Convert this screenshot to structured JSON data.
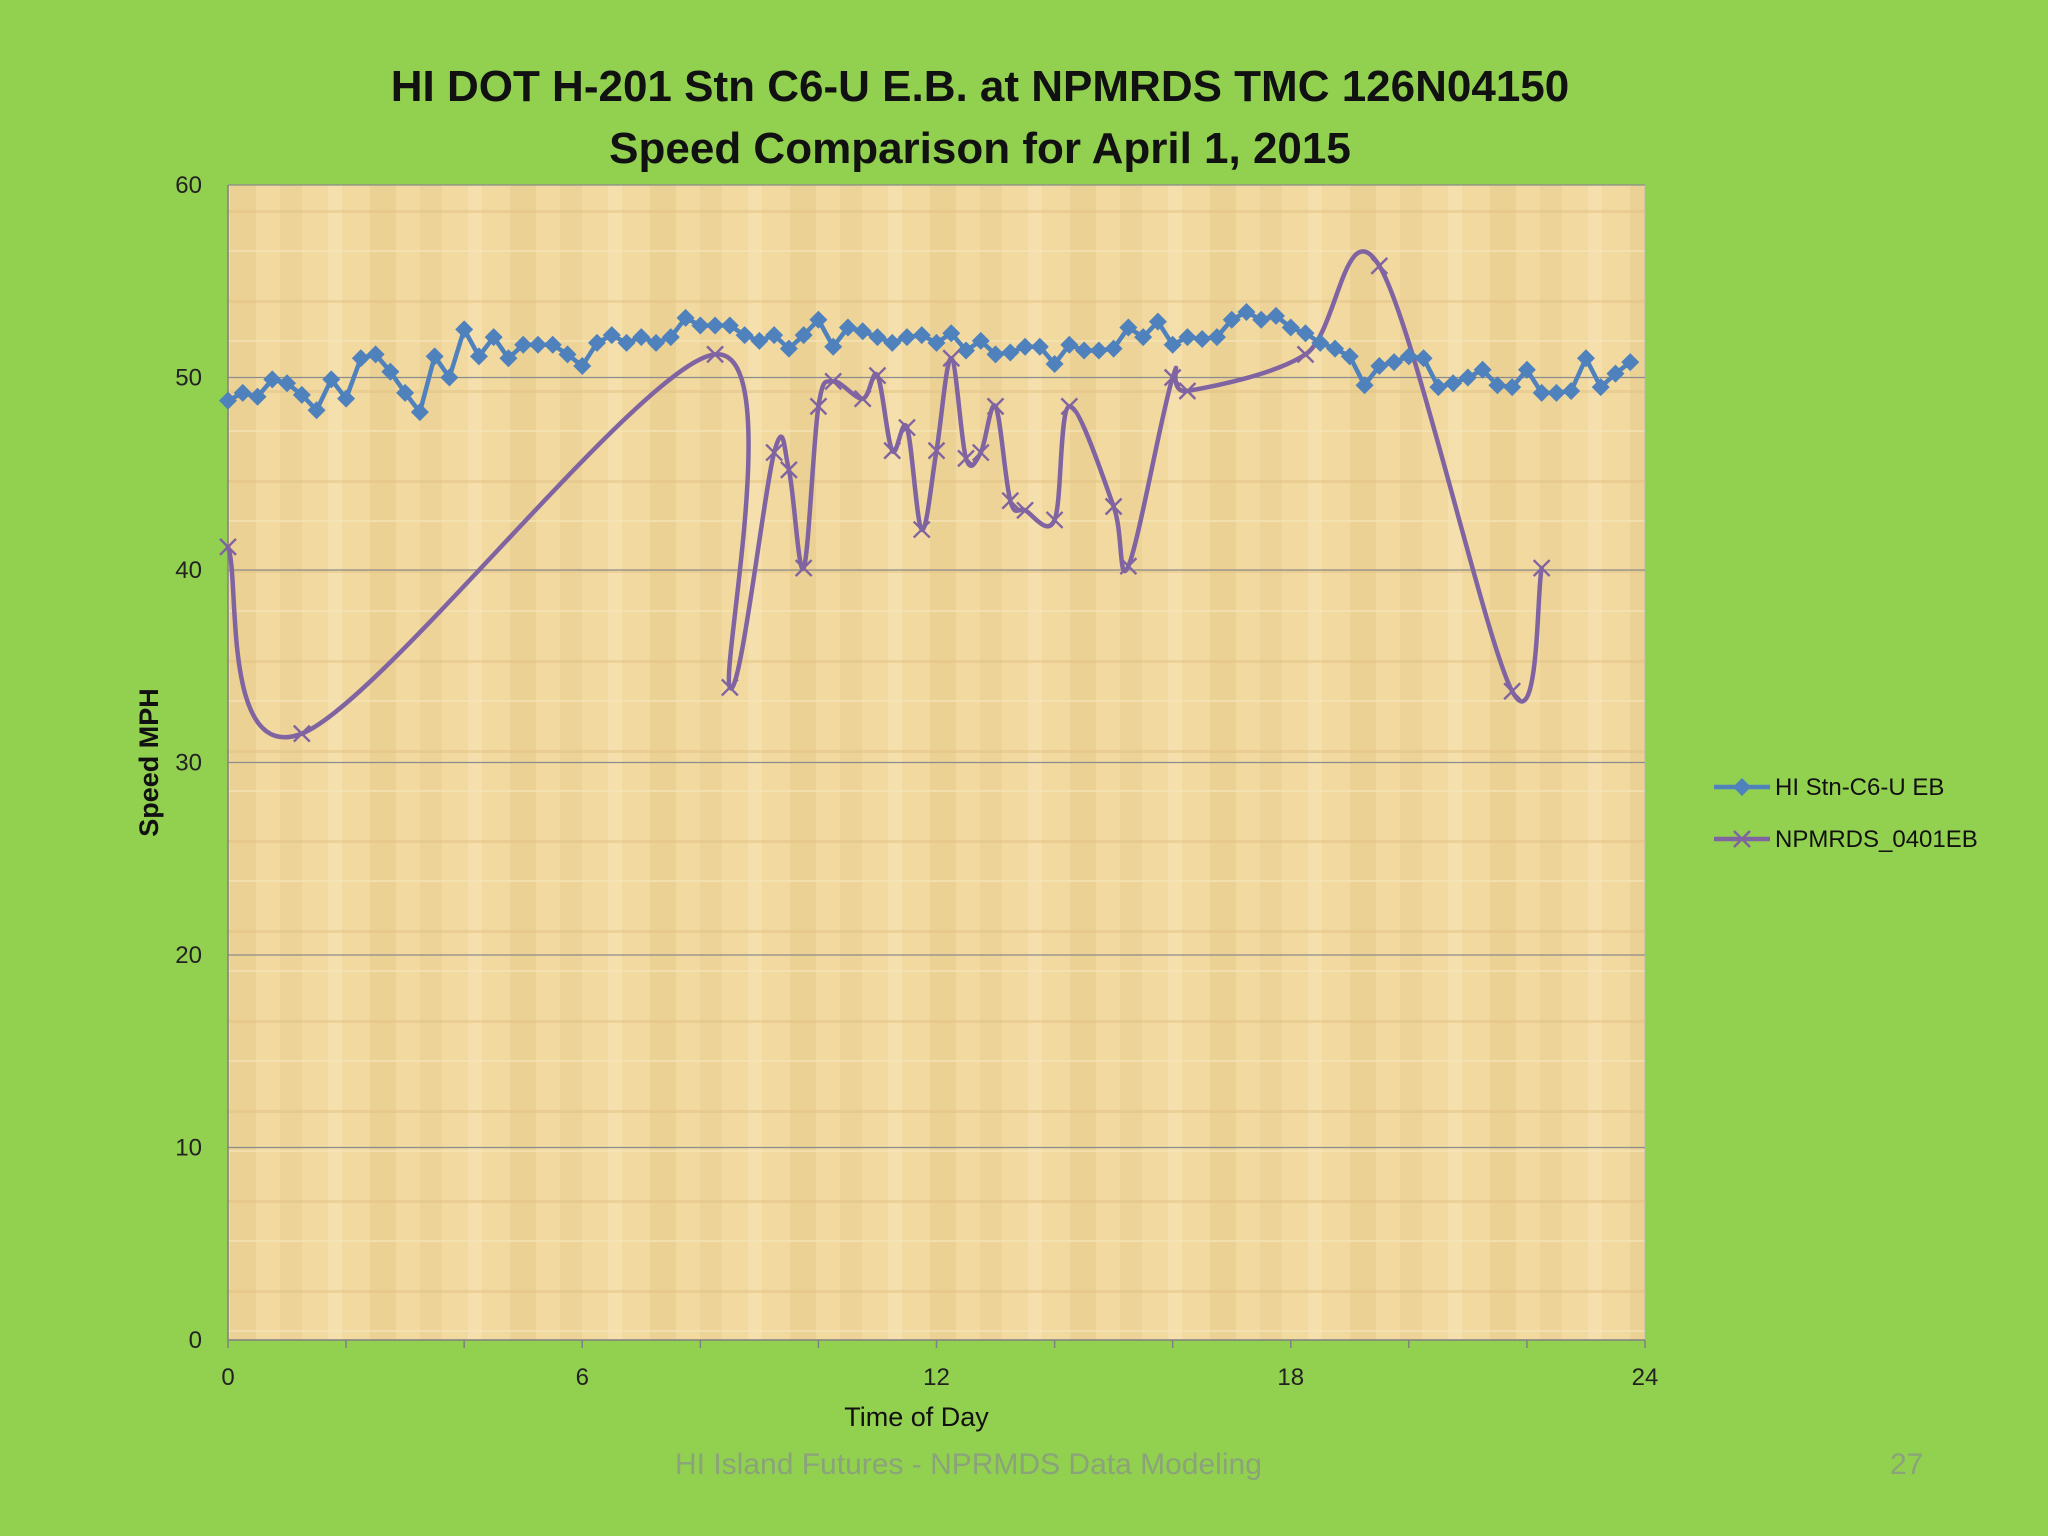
{
  "slide": {
    "footer": "HI Island Futures - NPRMDS Data Modeling",
    "page_number": "27",
    "background_color": "#92d050"
  },
  "chart_data": {
    "type": "line",
    "title_lines": [
      "HI DOT H-201 Stn C6-U E.B. at NPMRDS TMC 126N04150",
      "Speed Comparison for April 1, 2015"
    ],
    "xlabel": "Time of Day",
    "ylabel": "Speed MPH",
    "xlim": [
      0,
      24
    ],
    "ylim": [
      0,
      60
    ],
    "x_ticks": [
      0,
      6,
      12,
      18,
      24
    ],
    "y_ticks": [
      0,
      10,
      20,
      30,
      40,
      50,
      60
    ],
    "grid": "horizontal",
    "legend_position": "right",
    "series": [
      {
        "name": "HI Stn-C6-U EB",
        "color": "#4f81bd",
        "marker": "diamond",
        "smooth": false,
        "x": [
          0,
          0.25,
          0.5,
          0.75,
          1,
          1.25,
          1.5,
          1.75,
          2,
          2.25,
          2.5,
          2.75,
          3,
          3.25,
          3.5,
          3.75,
          4,
          4.25,
          4.5,
          4.75,
          5,
          5.25,
          5.5,
          5.75,
          6,
          6.25,
          6.5,
          6.75,
          7,
          7.25,
          7.5,
          7.75,
          8,
          8.25,
          8.5,
          8.75,
          9,
          9.25,
          9.5,
          9.75,
          10,
          10.25,
          10.5,
          10.75,
          11,
          11.25,
          11.5,
          11.75,
          12,
          12.25,
          12.5,
          12.75,
          13,
          13.25,
          13.5,
          13.75,
          14,
          14.25,
          14.5,
          14.75,
          15,
          15.25,
          15.5,
          15.75,
          16,
          16.25,
          16.5,
          16.75,
          17,
          17.25,
          17.5,
          17.75,
          18,
          18.25,
          18.5,
          18.75,
          19,
          19.25,
          19.5,
          19.75,
          20,
          20.25,
          20.5,
          20.75,
          21,
          21.25,
          21.5,
          21.75,
          22,
          22.25,
          22.5,
          22.75,
          23,
          23.25,
          23.5,
          23.75
        ],
        "values": [
          48.8,
          49.2,
          49.0,
          49.9,
          49.7,
          49.1,
          48.3,
          49.9,
          48.9,
          51.0,
          51.2,
          50.3,
          49.2,
          48.2,
          51.1,
          50.0,
          52.5,
          51.1,
          52.1,
          51.0,
          51.7,
          51.7,
          51.7,
          51.2,
          50.6,
          51.8,
          52.2,
          51.8,
          52.1,
          51.8,
          52.1,
          53.1,
          52.7,
          52.7,
          52.7,
          52.2,
          51.9,
          52.2,
          51.5,
          52.2,
          53.0,
          51.6,
          52.6,
          52.4,
          52.1,
          51.8,
          52.1,
          52.2,
          51.8,
          52.3,
          51.4,
          51.9,
          51.2,
          51.3,
          51.6,
          51.6,
          50.7,
          51.7,
          51.4,
          51.4,
          51.5,
          52.6,
          52.1,
          52.9,
          51.7,
          52.1,
          52.0,
          52.1,
          53.0,
          53.4,
          53.0,
          53.2,
          52.6,
          52.3,
          51.8,
          51.5,
          51.1,
          49.6,
          50.6,
          50.8,
          51.1,
          51.0,
          49.5,
          49.7,
          50.0,
          50.4,
          49.6,
          49.5,
          50.4,
          49.2,
          49.2,
          49.3,
          51.0,
          49.5,
          50.2,
          50.8
        ]
      },
      {
        "name": "NPMRDS_0401EB",
        "color": "#8064a2",
        "marker": "x",
        "smooth": true,
        "x": [
          0,
          1.25,
          8.25,
          8.5,
          9.25,
          9.5,
          9.75,
          10,
          10.25,
          10.75,
          11,
          11.25,
          11.5,
          11.75,
          12,
          12.25,
          12.5,
          12.75,
          13,
          13.25,
          13.5,
          14,
          14.25,
          15,
          15.25,
          16,
          16.25,
          18.25,
          19.5,
          21.75,
          22.25
        ],
        "values": [
          41.2,
          31.5,
          51.2,
          33.9,
          46.1,
          45.2,
          40.1,
          48.5,
          49.8,
          48.9,
          50.1,
          46.2,
          47.4,
          42.1,
          46.2,
          51.0,
          45.8,
          46.1,
          48.5,
          43.6,
          43.1,
          42.6,
          48.5,
          43.3,
          40.2,
          50.0,
          49.3,
          51.2,
          55.8,
          33.7,
          40.1
        ]
      }
    ]
  }
}
